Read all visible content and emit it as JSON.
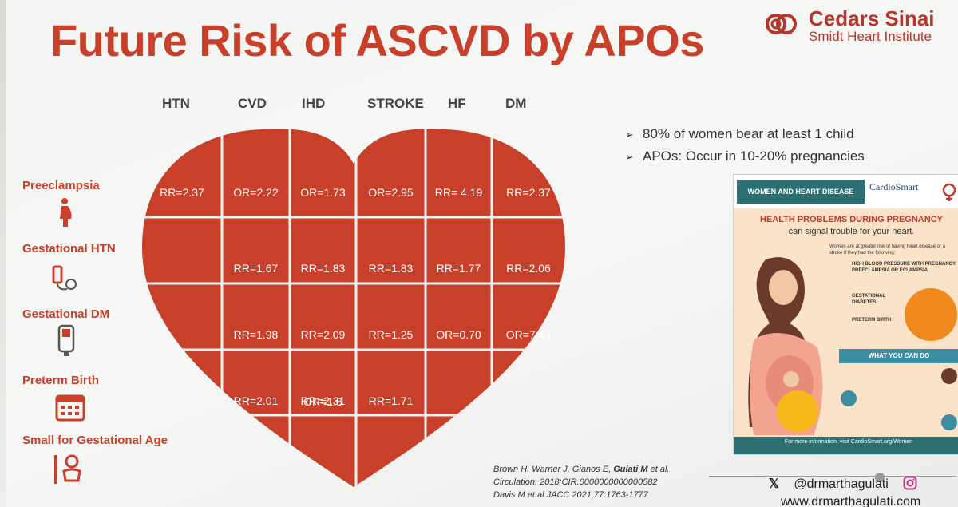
{
  "title": "Future Risk of ASCVD by APOs",
  "brand": {
    "name": "Cedars Sinai",
    "sub": "Smidt Heart Institute",
    "color": "#b6362b"
  },
  "columns": [
    "HTN",
    "CVD",
    "IHD",
    "STROKE",
    "HF",
    "DM"
  ],
  "rows": [
    {
      "label": "Preeclampsia",
      "icon": "pregnant-woman-icon"
    },
    {
      "label": "Gestational HTN",
      "icon": "blood-pressure-cuff-icon"
    },
    {
      "label": "Gestational DM",
      "icon": "glucose-meter-icon"
    },
    {
      "label": "Preterm Birth",
      "icon": "calendar-icon"
    },
    {
      "label": "Small for Gestational Age",
      "icon": "baby-icon"
    }
  ],
  "cells": [
    [
      "RR=2.37",
      "OR=2.22",
      "OR=1.73",
      "OR=2.95",
      "RR= 4.19",
      "RR=2.37"
    ],
    [
      "",
      "RR=1.67",
      "RR=1.83",
      "RR=1.83",
      "RR=1.77",
      "RR=2.06"
    ],
    [
      "",
      "RR=1.98",
      "RR=2.09",
      "RR=1.25",
      "OR=0.70",
      "OR=7.43"
    ],
    [
      "",
      "RR=2.01",
      "RR=2.31",
      "RR=1.71",
      "",
      ""
    ],
    [
      "",
      "",
      "OR=1.8",
      "",
      "",
      ""
    ]
  ],
  "heart_color": "#c8402a",
  "bullets": [
    "80% of women bear at least 1 child",
    "APOs: Occur in 10-20% pregnancies"
  ],
  "infographic": {
    "band": "WOMEN AND HEART DISEASE",
    "source": "CardioSmart",
    "heading": "HEALTH PROBLEMS DURING PREGNANCY",
    "subheading": "can signal trouble for your heart.",
    "intro": "Women are at greater risk of having heart disease or a stroke if they had the following:",
    "item1": "HIGH BLOOD PRESSURE WITH PREGNANCY, PREECLAMPSIA OR ECLAMPSIA",
    "item2": "GESTATIONAL DIABETES",
    "item3": "PRETERM BIRTH",
    "what": "WHAT YOU CAN DO",
    "footer": "For more information, visit CardioSmart.org/Women"
  },
  "citation": {
    "line1_authors": "Brown H, Warner J, Gianos E, ",
    "line1_bold": "Gulati M",
    "line1_tail": " et al.",
    "line2": "Circulation. 2018;CIR.0000000000000582",
    "line3": "Davis M et al JACC 2021;77:1763-1777"
  },
  "social": {
    "handle": "@drmarthagulati",
    "website": "www.drmarthagulati.com"
  }
}
